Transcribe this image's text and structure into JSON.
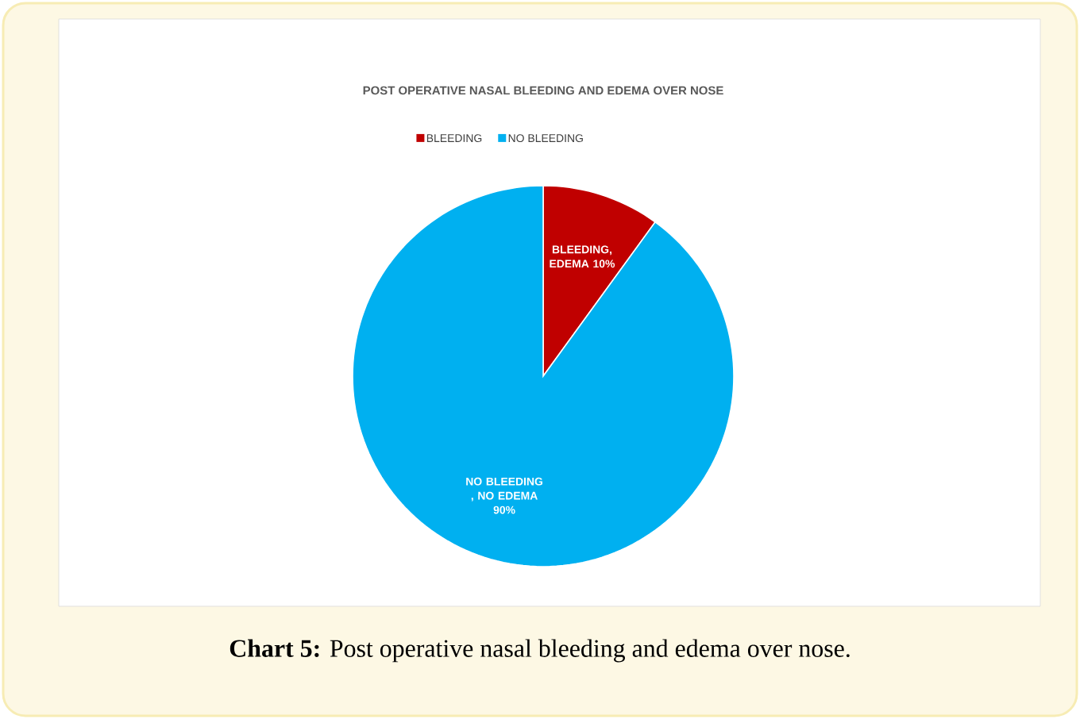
{
  "chart_data": {
    "type": "pie",
    "title": "POST OPERATIVE NASAL BLEEDING AND EDEMA OVER NOSE",
    "categories": [
      "BLEEDING",
      "NO BLEEDING"
    ],
    "values": [
      10,
      90
    ],
    "colors": [
      "#c00000",
      "#00b0f0"
    ],
    "value_labels": [
      "BLEEDING, EDEMA 10%",
      "NO BLEEDING , NO EDEMA 90%"
    ],
    "legend": "top",
    "annotations": [
      "**Chart 5:** Post operative nasal bleeding and edema over nose."
    ]
  }
}
